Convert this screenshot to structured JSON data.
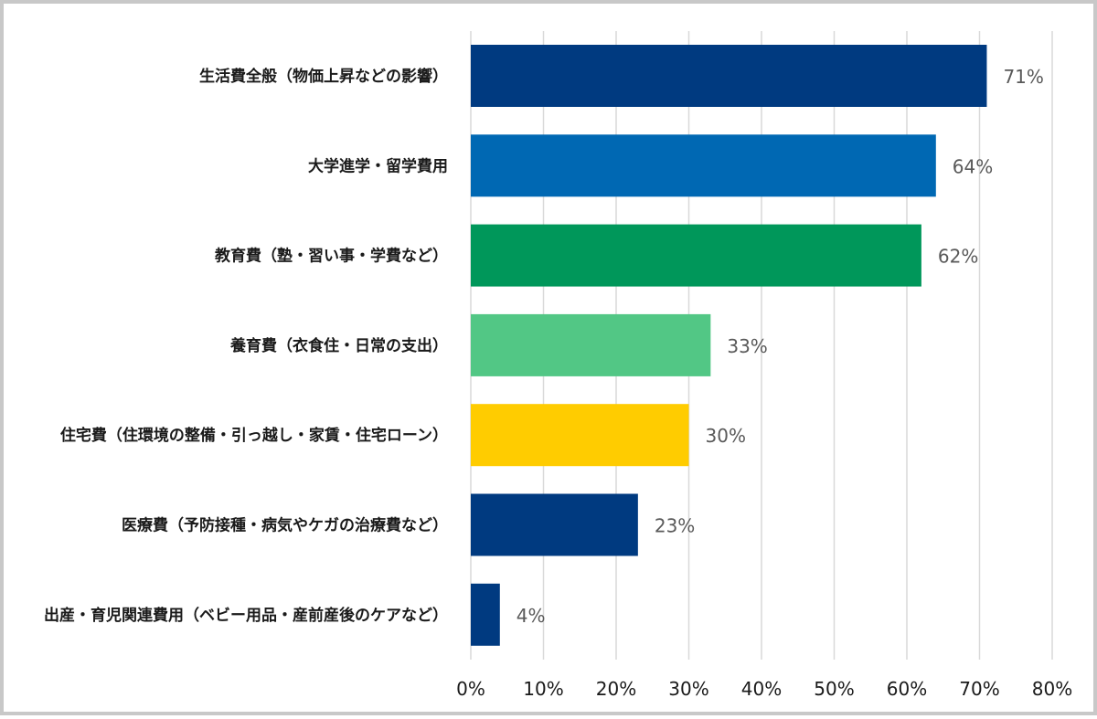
{
  "chart_data": {
    "type": "bar",
    "orientation": "horizontal",
    "categories": [
      "生活費全般（物価上昇などの影響）",
      "大学進学・留学費用",
      "教育費（塾・習い事・学費など）",
      "養育費（衣食住・日常の支出）",
      "住宅費（住環境の整備・引っ越し・家賃・住宅ローン）",
      "医療費（予防接種・病気やケガの治療費など）",
      "出産・育児関連費用（ベビー用品・産前産後のケアなど）"
    ],
    "values": [
      71,
      64,
      62,
      33,
      30,
      23,
      4
    ],
    "value_labels": [
      "71%",
      "64%",
      "62%",
      "33%",
      "30%",
      "23%",
      "4%"
    ],
    "colors": [
      "#003a80",
      "#0068b3",
      "#00975a",
      "#52c785",
      "#ffcc00",
      "#003a80",
      "#003a80"
    ],
    "xlim": [
      0,
      80
    ],
    "x_ticks": [
      0,
      10,
      20,
      30,
      40,
      50,
      60,
      70,
      80
    ],
    "x_tick_labels": [
      "0%",
      "10%",
      "20%",
      "30%",
      "40%",
      "50%",
      "60%",
      "70%",
      "80%"
    ],
    "grid": true,
    "legend": "none",
    "title": "",
    "xlabel": "",
    "ylabel": ""
  }
}
